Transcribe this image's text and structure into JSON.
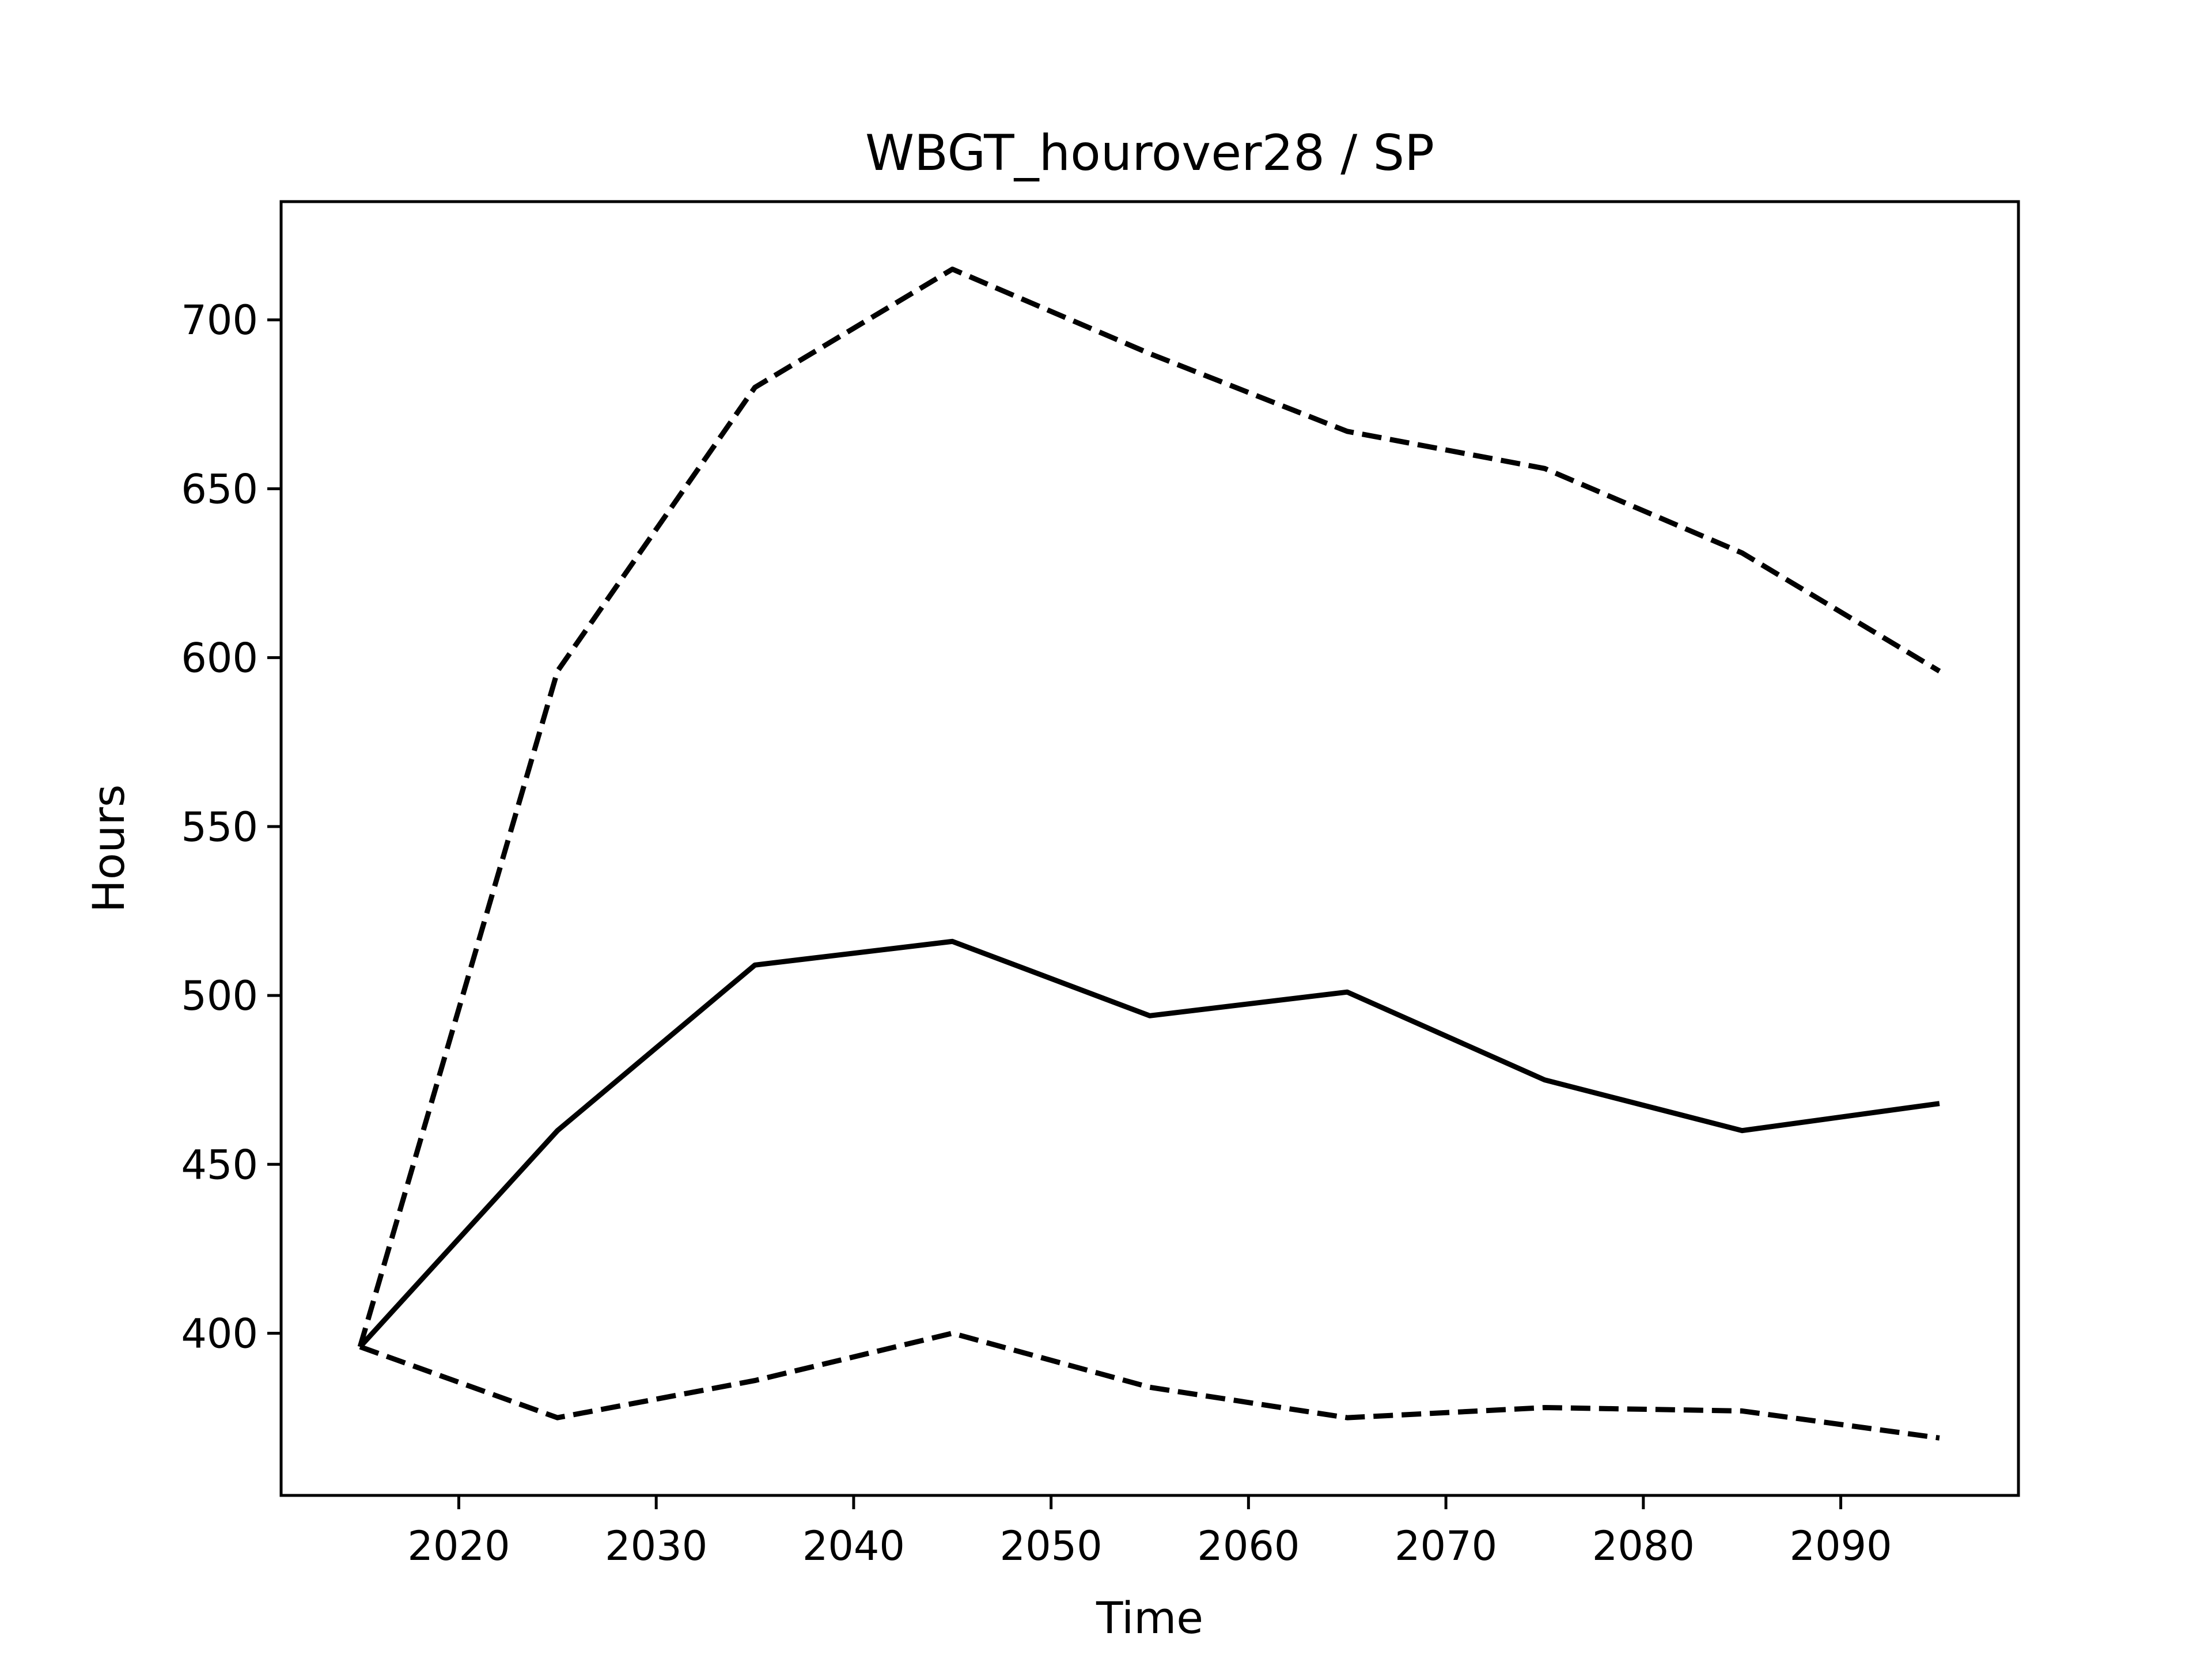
{
  "chart_data": {
    "type": "line",
    "title": "WBGT_hourover28 / SP",
    "xlabel": "Time",
    "ylabel": "Hours",
    "xlim": [
      2011,
      2099
    ],
    "ylim": [
      352,
      735
    ],
    "x_ticks": [
      2020,
      2030,
      2040,
      2050,
      2060,
      2070,
      2080,
      2090
    ],
    "x_tick_labels": [
      "2020",
      "2030",
      "2040",
      "2050",
      "2060",
      "2070",
      "2080",
      "2090"
    ],
    "y_ticks": [
      400,
      450,
      500,
      550,
      600,
      650,
      700
    ],
    "y_tick_labels": [
      "400",
      "450",
      "500",
      "550",
      "600",
      "650",
      "700"
    ],
    "grid": false,
    "x": [
      2015,
      2025,
      2035,
      2045,
      2055,
      2065,
      2075,
      2085,
      2095
    ],
    "series": [
      {
        "style": "solid",
        "color": "#000000",
        "values": [
          396,
          460,
          509,
          516,
          494,
          501,
          475,
          460,
          468
        ]
      },
      {
        "style": "dashed",
        "color": "#000000",
        "values": [
          396,
          596,
          680,
          715,
          690,
          667,
          656,
          631,
          596
        ]
      },
      {
        "style": "dashed",
        "color": "#000000",
        "values": [
          396,
          375,
          386,
          400,
          384,
          375,
          378,
          377,
          369
        ]
      }
    ]
  }
}
